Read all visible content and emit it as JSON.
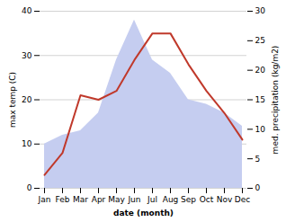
{
  "chart_data": {
    "type": "line",
    "xlabel": "date (month)",
    "ylabel": "max temp (C)",
    "y2label": "med. precipitation (kg/m2)",
    "categories": [
      "Jan",
      "Feb",
      "Mar",
      "Apr",
      "May",
      "Jun",
      "Jul",
      "Aug",
      "Sep",
      "Oct",
      "Nov",
      "Dec"
    ],
    "series": [
      {
        "type": "area",
        "color": "#c5cdf0",
        "values": [
          10,
          12,
          13,
          17,
          29,
          38,
          29,
          26,
          20,
          19,
          17,
          14
        ]
      },
      {
        "type": "line",
        "color": "#c0392b",
        "values": [
          3,
          8,
          21,
          20,
          22,
          29,
          35,
          35,
          28,
          22,
          17,
          11
        ]
      }
    ],
    "ylim": [
      0,
      40
    ],
    "yticks": [
      0,
      10,
      20,
      30,
      40
    ],
    "y2lim": [
      0,
      30
    ],
    "y2ticks": [
      0,
      5,
      10,
      15,
      20,
      25,
      30
    ],
    "grid": true
  }
}
